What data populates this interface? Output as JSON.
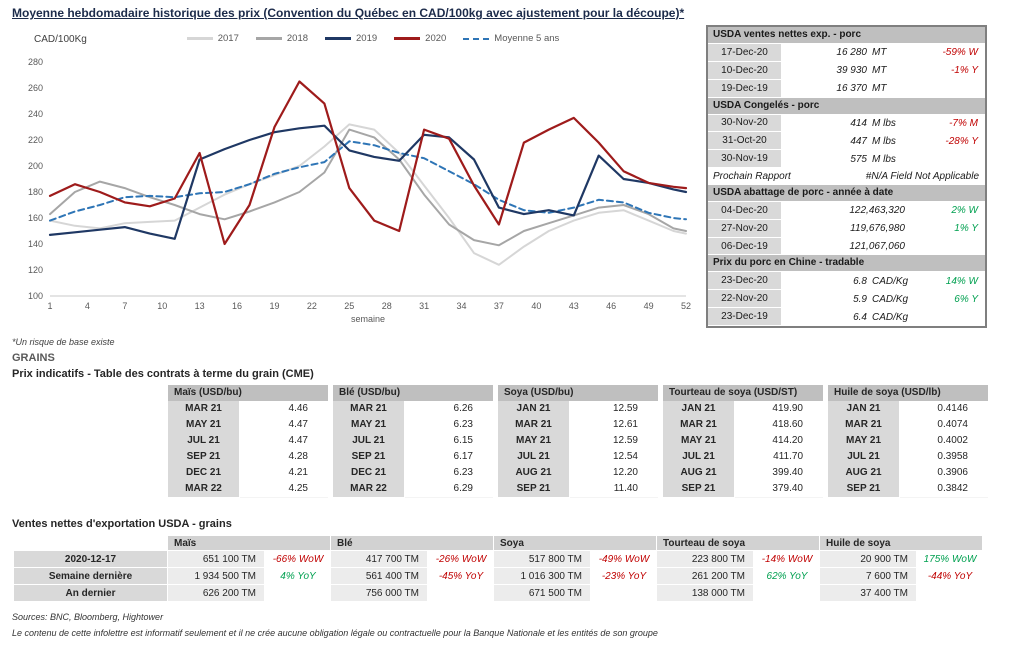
{
  "page": {
    "title": "Moyenne hebdomadaire historique des prix (Convention du Québec en CAD/100kg avec ajustement pour la découpe)*",
    "footnote": "*Un risque de base existe",
    "sources": "Sources: BNC, Bloomberg, Hightower",
    "disclaimer": "Le contenu de cette infolettre est informatif seulement et il ne crée aucune obligation légale ou contractuelle pour la Banque Nationale et les entités de son groupe"
  },
  "chart_data": {
    "type": "line",
    "title": "Moyenne hebdomadaire historique des prix (Convention du Québec en CAD/100kg avec ajustement pour la découpe)*",
    "xlabel": "semaine",
    "ylabel": "CAD/100Kg",
    "xlim": [
      1,
      52
    ],
    "ylim": [
      100,
      280
    ],
    "yticks": [
      100,
      120,
      140,
      160,
      180,
      200,
      220,
      240,
      260,
      280
    ],
    "xticks": [
      1,
      4,
      7,
      10,
      13,
      16,
      19,
      22,
      25,
      28,
      31,
      34,
      37,
      40,
      43,
      46,
      49,
      52
    ],
    "grid": false,
    "legend_position": "top",
    "x": [
      1,
      3,
      5,
      7,
      9,
      11,
      13,
      15,
      17,
      19,
      21,
      23,
      25,
      27,
      29,
      31,
      33,
      35,
      37,
      39,
      41,
      43,
      45,
      47,
      49,
      51,
      52
    ],
    "series": [
      {
        "name": "2017",
        "color": "#d6d6d6",
        "width": 2,
        "dash": null,
        "z": 1,
        "values": [
          158,
          154,
          152,
          156,
          157,
          158,
          168,
          178,
          186,
          193,
          200,
          215,
          232,
          228,
          210,
          185,
          160,
          133,
          124,
          138,
          150,
          158,
          164,
          166,
          158,
          150,
          148
        ]
      },
      {
        "name": "2018",
        "color": "#a6a6a6",
        "width": 2,
        "dash": null,
        "z": 2,
        "values": [
          163,
          180,
          188,
          183,
          176,
          170,
          163,
          159,
          165,
          172,
          180,
          195,
          228,
          222,
          205,
          178,
          155,
          143,
          139,
          150,
          156,
          162,
          168,
          170,
          163,
          152,
          150
        ]
      },
      {
        "name": "2019",
        "color": "#1f3864",
        "width": 2.2,
        "dash": null,
        "z": 4,
        "values": [
          147,
          149,
          151,
          153,
          148,
          144,
          205,
          213,
          220,
          226,
          229,
          231,
          212,
          207,
          204,
          224,
          222,
          205,
          168,
          163,
          166,
          162,
          208,
          190,
          187,
          182,
          180
        ]
      },
      {
        "name": "2020",
        "color": "#9e1b1b",
        "width": 2.2,
        "dash": null,
        "z": 5,
        "values": [
          177,
          186,
          180,
          172,
          169,
          175,
          210,
          140,
          170,
          230,
          265,
          248,
          183,
          158,
          150,
          228,
          221,
          185,
          155,
          218,
          228,
          237,
          218,
          196,
          187,
          184,
          183
        ]
      },
      {
        "name": "Moyenne 5 ans",
        "color": "#2e75b6",
        "width": 2,
        "dash": "6 4",
        "z": 3,
        "values": [
          158,
          165,
          170,
          176,
          177,
          176,
          179,
          180,
          186,
          194,
          199,
          203,
          219,
          216,
          210,
          206,
          196,
          186,
          174,
          166,
          164,
          168,
          174,
          172,
          164,
          160,
          159
        ]
      }
    ]
  },
  "pork_panel": {
    "blocks": [
      {
        "type": "header",
        "text": "USDA ventes nettes exp. - porc"
      },
      {
        "type": "row",
        "date": "17-Dec-20",
        "value": "16 280",
        "unit": "MT",
        "change": "-59% W",
        "trend": "neg"
      },
      {
        "type": "row",
        "date": "10-Dec-20",
        "value": "39 930",
        "unit": "MT",
        "change": "-1% Y",
        "trend": "neg"
      },
      {
        "type": "row",
        "date": "19-Dec-19",
        "value": "16 370",
        "unit": "MT",
        "change": "",
        "trend": ""
      },
      {
        "type": "header",
        "text": "USDA Congelés - porc"
      },
      {
        "type": "row",
        "date": "30-Nov-20",
        "value": "414",
        "unit": "M lbs",
        "change": "-7% M",
        "trend": "neg"
      },
      {
        "type": "row",
        "date": "31-Oct-20",
        "value": "447",
        "unit": "M lbs",
        "change": "-28% Y",
        "trend": "neg"
      },
      {
        "type": "row",
        "date": "30-Nov-19",
        "value": "575",
        "unit": "M lbs",
        "change": "",
        "trend": ""
      },
      {
        "type": "note",
        "label": "Prochain Rapport",
        "value": "#N/A Field Not Applicable"
      },
      {
        "type": "header",
        "text": "USDA abattage de porc - année à date"
      },
      {
        "type": "row",
        "date": "04-Dec-20",
        "value": "122,463,320",
        "unit": "",
        "change": "2% W",
        "trend": "pos"
      },
      {
        "type": "row",
        "date": "27-Nov-20",
        "value": "119,676,980",
        "unit": "",
        "change": "1% Y",
        "trend": "pos"
      },
      {
        "type": "row",
        "date": "06-Dec-19",
        "value": "121,067,060",
        "unit": "",
        "change": "",
        "trend": ""
      },
      {
        "type": "header",
        "text": "Prix du porc en Chine - tradable"
      },
      {
        "type": "row",
        "date": "23-Dec-20",
        "value": "6.8",
        "unit": "CAD/Kg",
        "change": "14% W",
        "trend": "pos"
      },
      {
        "type": "row",
        "date": "22-Nov-20",
        "value": "5.9",
        "unit": "CAD/Kg",
        "change": "6% Y",
        "trend": "pos"
      },
      {
        "type": "row",
        "date": "23-Dec-19",
        "value": "6.4",
        "unit": "CAD/Kg",
        "change": "",
        "trend": ""
      }
    ]
  },
  "grains": {
    "section_title": "GRAINS",
    "futures_title": "Prix indicatifs - Table des contrats à terme du grain (CME)",
    "tables": [
      {
        "name": "Maïs (USD/bu)",
        "rows": [
          [
            "MAR 21",
            "4.46"
          ],
          [
            "MAY 21",
            "4.47"
          ],
          [
            "JUL 21",
            "4.47"
          ],
          [
            "SEP 21",
            "4.28"
          ],
          [
            "DEC 21",
            "4.21"
          ],
          [
            "MAR 22",
            "4.25"
          ]
        ]
      },
      {
        "name": "Blé (USD/bu)",
        "rows": [
          [
            "MAR 21",
            "6.26"
          ],
          [
            "MAY 21",
            "6.23"
          ],
          [
            "JUL 21",
            "6.15"
          ],
          [
            "SEP 21",
            "6.17"
          ],
          [
            "DEC 21",
            "6.23"
          ],
          [
            "MAR 22",
            "6.29"
          ]
        ]
      },
      {
        "name": "Soya (USD/bu)",
        "rows": [
          [
            "JAN 21",
            "12.59"
          ],
          [
            "MAR 21",
            "12.61"
          ],
          [
            "MAY 21",
            "12.59"
          ],
          [
            "JUL 21",
            "12.54"
          ],
          [
            "AUG 21",
            "12.20"
          ],
          [
            "SEP 21",
            "11.40"
          ]
        ]
      },
      {
        "name": "Tourteau de soya (USD/ST)",
        "rows": [
          [
            "JAN 21",
            "419.90"
          ],
          [
            "MAR 21",
            "418.60"
          ],
          [
            "MAY 21",
            "414.20"
          ],
          [
            "JUL 21",
            "411.70"
          ],
          [
            "AUG 21",
            "399.40"
          ],
          [
            "SEP 21",
            "379.40"
          ]
        ]
      },
      {
        "name": "Huile de soya (USD/lb)",
        "rows": [
          [
            "JAN 21",
            "0.4146"
          ],
          [
            "MAR 21",
            "0.4074"
          ],
          [
            "MAY 21",
            "0.4002"
          ],
          [
            "JUL 21",
            "0.3958"
          ],
          [
            "AUG 21",
            "0.3906"
          ],
          [
            "SEP 21",
            "0.3842"
          ]
        ]
      }
    ]
  },
  "exports": {
    "title": "Ventes nettes d'exportation USDA - grains",
    "row_labels": [
      "2020-12-17",
      "Semaine dernière",
      "An dernier"
    ],
    "commodities": [
      {
        "name": "Maïs",
        "rows": [
          {
            "value": "651 100 TM",
            "change": "-66% WoW",
            "trend": "neg"
          },
          {
            "value": "1 934 500 TM",
            "change": "4% YoY",
            "trend": "pos"
          },
          {
            "value": "626 200 TM",
            "change": "",
            "trend": ""
          }
        ]
      },
      {
        "name": "Blé",
        "rows": [
          {
            "value": "417 700 TM",
            "change": "-26% WoW",
            "trend": "neg"
          },
          {
            "value": "561 400 TM",
            "change": "-45% YoY",
            "trend": "neg"
          },
          {
            "value": "756 000 TM",
            "change": "",
            "trend": ""
          }
        ]
      },
      {
        "name": "Soya",
        "rows": [
          {
            "value": "517 800 TM",
            "change": "-49% WoW",
            "trend": "neg"
          },
          {
            "value": "1 016 300 TM",
            "change": "-23% YoY",
            "trend": "neg"
          },
          {
            "value": "671 500 TM",
            "change": "",
            "trend": ""
          }
        ]
      },
      {
        "name": "Tourteau de soya",
        "rows": [
          {
            "value": "223 800 TM",
            "change": "-14% WoW",
            "trend": "neg"
          },
          {
            "value": "261 200 TM",
            "change": "62% YoY",
            "trend": "pos"
          },
          {
            "value": "138 000 TM",
            "change": "",
            "trend": ""
          }
        ]
      },
      {
        "name": "Huile de soya",
        "rows": [
          {
            "value": "20 900 TM",
            "change": "175% WoW",
            "trend": "pos"
          },
          {
            "value": "7 600 TM",
            "change": "-44% YoY",
            "trend": "neg"
          },
          {
            "value": "37 400 TM",
            "change": "",
            "trend": ""
          }
        ]
      }
    ]
  }
}
